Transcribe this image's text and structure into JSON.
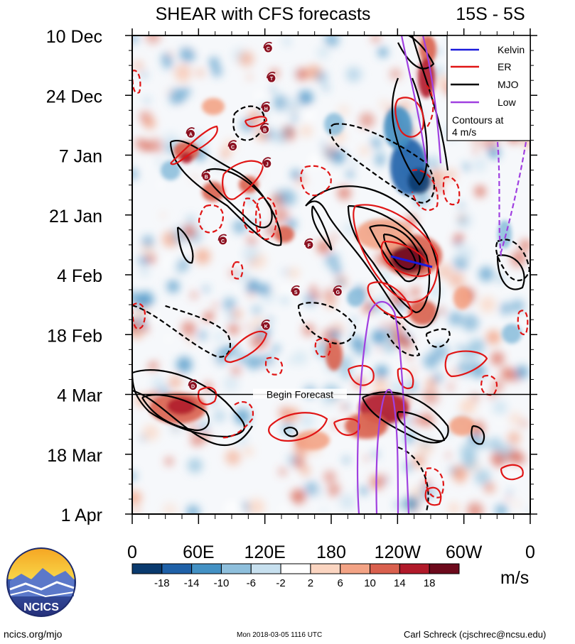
{
  "chart_data": {
    "type": "heatmap",
    "title": "SHEAR with CFS forecasts",
    "lat_band": "15S - 5S",
    "x_ticks": [
      {
        "lon": 0,
        "label": "0"
      },
      {
        "lon": 60,
        "label": "60E"
      },
      {
        "lon": 120,
        "label": "120E"
      },
      {
        "lon": 180,
        "label": "180"
      },
      {
        "lon": 240,
        "label": "120W"
      },
      {
        "lon": 300,
        "label": "60W"
      },
      {
        "lon": 360,
        "label": "0"
      }
    ],
    "xlim": [
      0,
      360
    ],
    "y_ticks": [
      {
        "day": 0,
        "label": "10 Dec"
      },
      {
        "day": 14,
        "label": "24 Dec"
      },
      {
        "day": 28,
        "label": "7 Jan"
      },
      {
        "day": 42,
        "label": "21 Jan"
      },
      {
        "day": 56,
        "label": "4 Feb"
      },
      {
        "day": 70,
        "label": "18 Feb"
      },
      {
        "day": 84,
        "label": "4 Mar"
      },
      {
        "day": 98,
        "label": "18 Mar"
      },
      {
        "day": 112,
        "label": "1 Apr"
      }
    ],
    "ylim": [
      0,
      112
    ],
    "forecast_start": {
      "day": 84,
      "label": "Begin Forecast"
    },
    "legend": {
      "position": "top-right",
      "items": [
        {
          "name": "Kelvin",
          "color": "#1a1adc"
        },
        {
          "name": "ER",
          "color": "#e01515"
        },
        {
          "name": "MJO",
          "color": "#000000"
        },
        {
          "name": "Low",
          "color": "#a040e0"
        }
      ],
      "note_line1": "Contours at",
      "note_line2": "4 m/s"
    },
    "colorbar": {
      "unit": "m/s",
      "levels": [
        -18,
        -14,
        -10,
        -6,
        -2,
        2,
        6,
        10,
        14,
        18
      ],
      "tick_labels": [
        "-18",
        "-14",
        "-10",
        "-6",
        "-2",
        "2",
        "6",
        "10",
        "14",
        "18"
      ],
      "colors": [
        "#0a3a6e",
        "#1f61a8",
        "#4391c4",
        "#8ebfdc",
        "#c7e0ef",
        "#ffffff",
        "#fbd5c1",
        "#f3a385",
        "#d9604e",
        "#b11a2a",
        "#6d0a1c"
      ]
    },
    "tc_markers": [
      {
        "letter": "C",
        "lon": 123,
        "day": 3
      },
      {
        "letter": "T",
        "lon": 126,
        "day": 10
      },
      {
        "letter": "H",
        "lon": 121,
        "day": 17
      },
      {
        "letter": "B",
        "lon": 120,
        "day": 22
      },
      {
        "letter": "A",
        "lon": 53,
        "day": 23
      },
      {
        "letter": "C",
        "lon": 91,
        "day": 26
      },
      {
        "letter": "J",
        "lon": 122,
        "day": 30
      },
      {
        "letter": "B",
        "lon": 67,
        "day": 33
      },
      {
        "letter": "C",
        "lon": 82,
        "day": 48
      },
      {
        "letter": "F",
        "lon": 160,
        "day": 49
      },
      {
        "letter": "S",
        "lon": 148,
        "day": 60
      },
      {
        "letter": "G",
        "lon": 186,
        "day": 60
      },
      {
        "letter": "K",
        "lon": 121,
        "day": 68
      },
      {
        "letter": "D",
        "lon": 55,
        "day": 82
      }
    ]
  },
  "branding": {
    "logo_text": "NCICS",
    "url": "ncics.org/mjo",
    "timestamp": "Mon 2018-03-05 1116 UTC",
    "author": "Carl Schreck (cjschrec@ncsu.edu)"
  }
}
